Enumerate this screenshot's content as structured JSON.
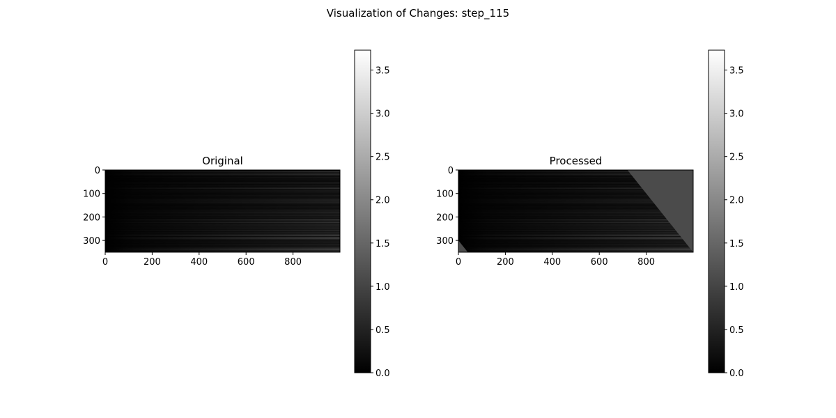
{
  "figure": {
    "title": "Visualization of Changes: step_115"
  },
  "colormap": "gray",
  "colors": {
    "background": "#ffffff",
    "axes": "#000000",
    "processed_fill": "#454545"
  },
  "chart_data": [
    {
      "type": "heatmap",
      "title": "Original",
      "image_extent": {
        "width": 1000,
        "height": 350
      },
      "xticks": [
        0,
        200,
        400,
        600,
        800
      ],
      "yticks": [
        0,
        100,
        200,
        300
      ],
      "xlim": [
        0,
        1000
      ],
      "ylim": [
        350,
        0
      ],
      "value_range": [
        0.0,
        3.73
      ],
      "pattern": "dark horizontal streaks brightening toward the right"
    },
    {
      "type": "heatmap",
      "title": "Processed",
      "image_extent": {
        "width": 1000,
        "height": 350
      },
      "xticks": [
        0,
        200,
        400,
        600,
        800
      ],
      "yticks": [
        0,
        100,
        200,
        300
      ],
      "xlim": [
        0,
        1000
      ],
      "ylim": [
        350,
        0
      ],
      "value_range": [
        0.0,
        3.73
      ],
      "pattern": "same streaks with a uniform triangular fill in the upper right and a small one in the lower left",
      "filled_value": 1.1,
      "filled_regions": [
        {
          "corner": "upper-right",
          "x_at_top": 720,
          "x_at_bottom": 1000
        },
        {
          "corner": "lower-left",
          "x_at_top": 0,
          "x_at_bottom": 40
        }
      ]
    }
  ],
  "colorbars": [
    {
      "min": 0.0,
      "max": 3.73,
      "ticks": [
        0.0,
        0.5,
        1.0,
        1.5,
        2.0,
        2.5,
        3.0,
        3.5
      ],
      "tick_labels": [
        "0.0",
        "0.5",
        "1.0",
        "1.5",
        "2.0",
        "2.5",
        "3.0",
        "3.5"
      ]
    },
    {
      "min": 0.0,
      "max": 3.73,
      "ticks": [
        0.0,
        0.5,
        1.0,
        1.5,
        2.0,
        2.5,
        3.0,
        3.5
      ],
      "tick_labels": [
        "0.0",
        "0.5",
        "1.0",
        "1.5",
        "2.0",
        "2.5",
        "3.0",
        "3.5"
      ]
    }
  ]
}
